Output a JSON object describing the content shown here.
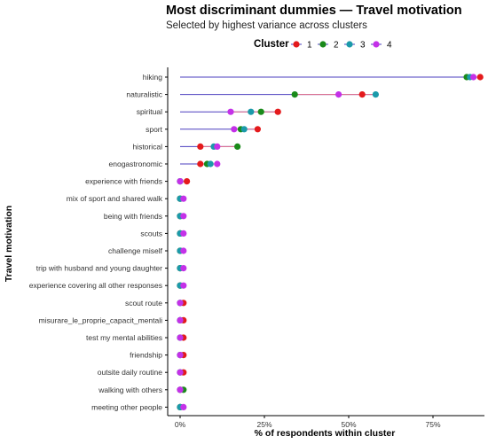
{
  "chart_data": {
    "type": "dot",
    "title": "Most discriminant dummies — Travel motivation",
    "subtitle": "Selected by highest variance across clusters",
    "xlabel": "% of respondents within cluster",
    "ylabel": "Travel motivation",
    "xlim": [
      0,
      0.92
    ],
    "xticks": [
      0,
      0.25,
      0.5,
      0.75
    ],
    "xtick_labels": [
      "0%",
      "25%",
      "50%",
      "75%"
    ],
    "legend": {
      "title": "Cluster",
      "position": "top"
    },
    "grid": false,
    "categories": [
      "hiking",
      "naturalistic",
      "spiritual",
      "sport",
      "historical",
      "enogastronomic",
      "experience with friends",
      "mix of sport and shared walk",
      "being with friends",
      "scouts",
      "challenge miself",
      "trip with husband and young daughter",
      "experience covering all other responses",
      "scout route",
      "misurare_le_proprie_capacit_mentali",
      "test my mental abilities",
      "friendship",
      "outsite daily routine",
      "walking with others",
      "meeting other people"
    ],
    "series": [
      {
        "name": "1",
        "color": "#e41a1c",
        "values": [
          0.89,
          0.54,
          0.29,
          0.23,
          0.06,
          0.06,
          0.02,
          0.0,
          0.0,
          0.0,
          0.0,
          0.0,
          0.0,
          0.01,
          0.01,
          0.01,
          0.01,
          0.01,
          0.0,
          0.0
        ]
      },
      {
        "name": "2",
        "color": "#1a8a1a",
        "values": [
          0.85,
          0.34,
          0.24,
          0.18,
          0.17,
          0.08,
          0.0,
          0.0,
          0.0,
          0.0,
          0.0,
          0.0,
          0.0,
          0.0,
          0.0,
          0.0,
          0.0,
          0.0,
          0.01,
          0.0
        ]
      },
      {
        "name": "3",
        "color": "#1b9aaa",
        "values": [
          0.86,
          0.58,
          0.21,
          0.19,
          0.1,
          0.09,
          0.0,
          0.0,
          0.0,
          0.0,
          0.0,
          0.0,
          0.0,
          0.0,
          0.0,
          0.0,
          0.0,
          0.0,
          0.0,
          0.0
        ]
      },
      {
        "name": "4",
        "color": "#c431e8",
        "values": [
          0.87,
          0.47,
          0.15,
          0.16,
          0.11,
          0.11,
          0.0,
          0.01,
          0.01,
          0.01,
          0.01,
          0.01,
          0.01,
          0.0,
          0.0,
          0.0,
          0.0,
          0.0,
          0.0,
          0.01
        ]
      }
    ],
    "segment_color": "#4b3fbf"
  }
}
